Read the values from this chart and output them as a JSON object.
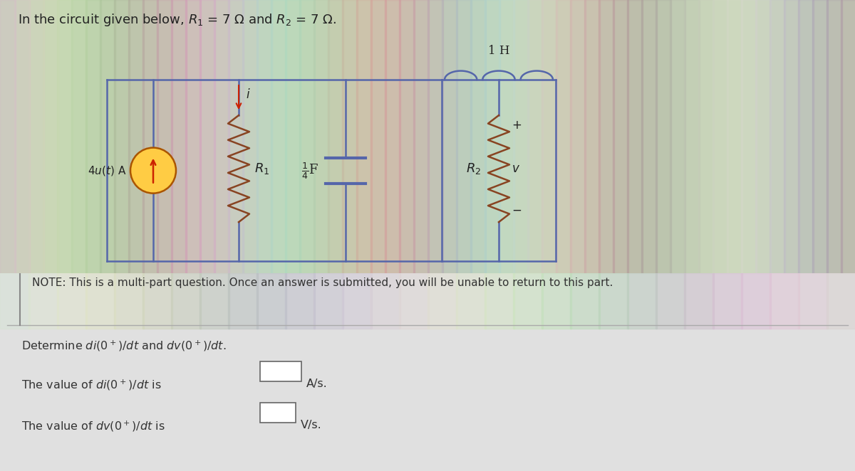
{
  "title_text": "In the circuit given below, $R_1$ = 7 Ω and $R_2$ = 7 Ω.",
  "note_text": "NOTE: This is a multi-part question. Once an answer is submitted, you will be unable to return to this part.",
  "question_text": "Determine $di(0^+)/dt$ and $dv(0^+)/dt$.",
  "line1_text": "The value of $di(0^+)/dt$ is",
  "line2_text": "The value of $dv(0^+)/dt$ is",
  "unit1": "A/s.",
  "unit2": "V/s.",
  "top_bg": "#c8d8b8",
  "bottom_bg": "#e8e8e8",
  "circuit_wire_color": "#5566aa",
  "resistor_color": "#884422",
  "text_color": "#222222",
  "source_circle_color": "#ffcc44",
  "source_arrow_color": "#cc2200",
  "current_arrow_color": "#cc2200",
  "note_bg": "#d8e8c8"
}
